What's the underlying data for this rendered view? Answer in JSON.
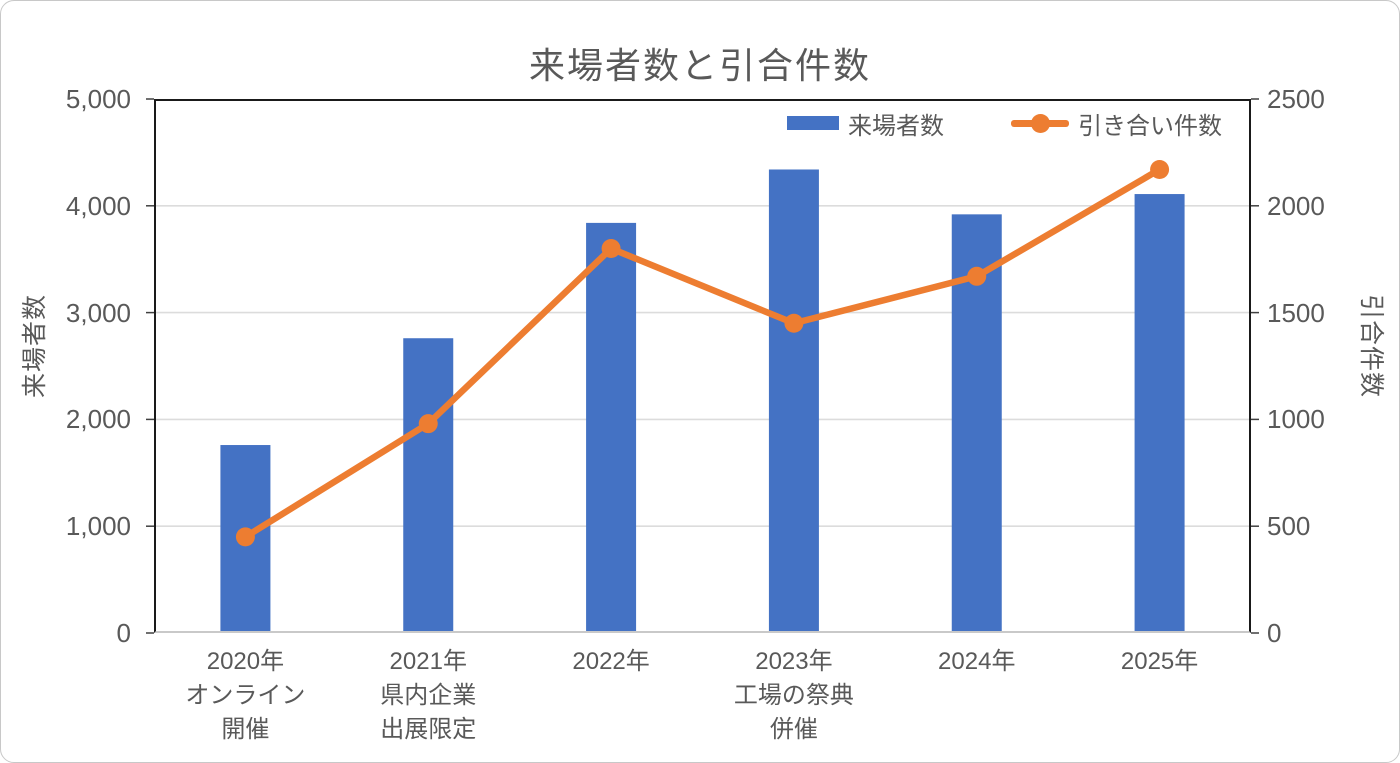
{
  "chart_data": {
    "type": "combo-bar-line",
    "title": "来場者数と引合件数",
    "categories": [
      [
        "2020年",
        "オンライン",
        "開催"
      ],
      [
        "2021年",
        "県内企業",
        "出展限定"
      ],
      [
        "2022年"
      ],
      [
        "2023年",
        "工場の祭典",
        "併催"
      ],
      [
        "2024年"
      ],
      [
        "2025年"
      ]
    ],
    "series": [
      {
        "name": "来場者数",
        "type": "bar",
        "axis": "left",
        "values": [
          1760,
          2760,
          3840,
          4340,
          3920,
          4110
        ]
      },
      {
        "name": "引き合い件数",
        "type": "line",
        "axis": "right",
        "values": [
          450,
          980,
          1800,
          1450,
          1670,
          2170
        ]
      }
    ],
    "y_left": {
      "label": "来場者数",
      "min": 0,
      "max": 5000,
      "step": 1000,
      "tick_labels": [
        "0",
        "1,000",
        "2,000",
        "3,000",
        "4,000",
        "5,000"
      ]
    },
    "y_right": {
      "label": "引合件数",
      "min": 0,
      "max": 2500,
      "step": 500,
      "tick_labels": [
        "0",
        "500",
        "1000",
        "1500",
        "2000",
        "2500"
      ]
    },
    "legend": {
      "position": "top-right-inside",
      "items": [
        {
          "label": "来場者数",
          "swatch": "bar"
        },
        {
          "label": "引き合い件数",
          "swatch": "line-marker"
        }
      ]
    },
    "grid": "horizontal",
    "colors": {
      "bar": "#4472C4",
      "line": "#ED7D31",
      "gridline": "#DCDCDC",
      "plot_border": "#1a1a1a",
      "bottom_axis": "#C9C9C9",
      "text": "#595959",
      "tick": "#404040"
    }
  }
}
